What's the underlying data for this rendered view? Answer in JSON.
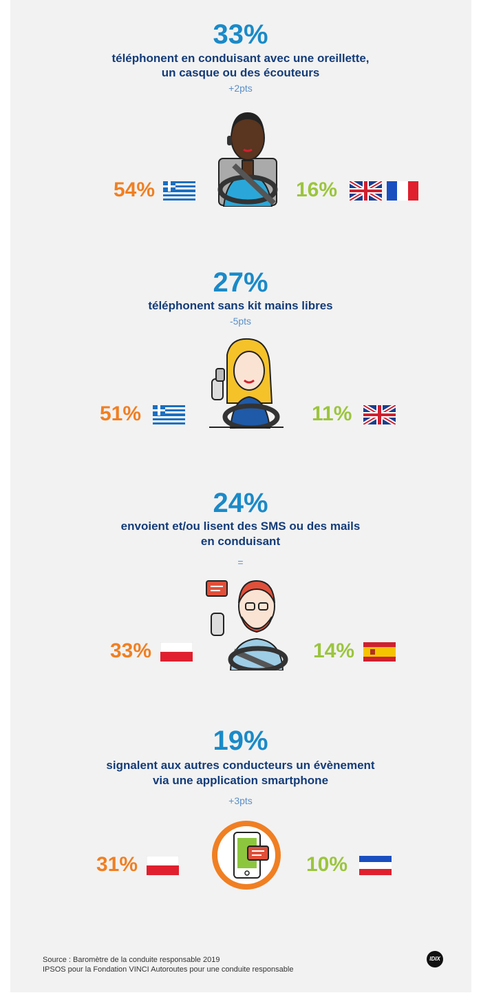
{
  "sections": [
    {
      "headline": "33%",
      "description": [
        "téléphonent en conduisant avec une oreillette,",
        "un casque ou des écouteurs"
      ],
      "change": "+2pts",
      "left": "54%",
      "right": "16%"
    },
    {
      "headline": "27%",
      "description": [
        "téléphonent sans kit mains libres"
      ],
      "change": "-5pts",
      "left": "51%",
      "right": "11%"
    },
    {
      "headline": "24%",
      "description": [
        "envoient et/ou lisent des SMS ou des mails",
        "en conduisant"
      ],
      "change": "=",
      "left": "33%",
      "right": "14%"
    },
    {
      "headline": "19%",
      "description": [
        "signalent aux autres conducteurs un évènement",
        "via une application smartphone"
      ],
      "change": "+3pts",
      "left": "31%",
      "right": "10%"
    }
  ],
  "source": [
    "Source : Baromètre de la conduite responsable 2019",
    "IPSOS pour la Fondation VINCI Autoroutes pour une conduite responsable"
  ],
  "logo": "IDIX"
}
